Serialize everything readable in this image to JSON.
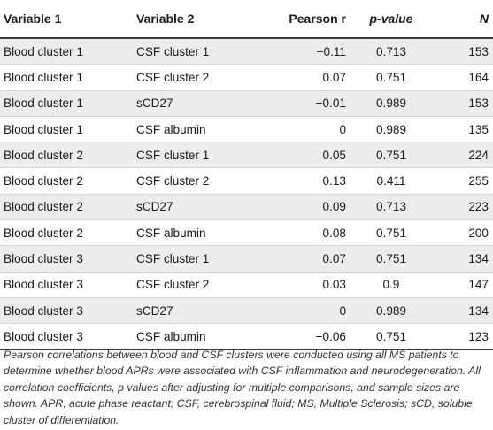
{
  "table": {
    "headers": {
      "var1": "Variable 1",
      "var2": "Variable 2",
      "pearson": "Pearson r",
      "pvalue": "p-value",
      "n": "N"
    },
    "rows": [
      {
        "var1": "Blood cluster 1",
        "var2": "CSF cluster 1",
        "r": "−0.11",
        "p": "0.713",
        "n": "153"
      },
      {
        "var1": "Blood cluster 1",
        "var2": "CSF cluster 2",
        "r": "0.07",
        "p": "0.751",
        "n": "164"
      },
      {
        "var1": "Blood cluster 1",
        "var2": "sCD27",
        "r": "−0.01",
        "p": "0.989",
        "n": "153"
      },
      {
        "var1": "Blood cluster 1",
        "var2": "CSF albumin",
        "r": "0",
        "p": "0.989",
        "n": "135"
      },
      {
        "var1": "Blood cluster 2",
        "var2": "CSF cluster 1",
        "r": "0.05",
        "p": "0.751",
        "n": "224"
      },
      {
        "var1": "Blood cluster 2",
        "var2": "CSF cluster 2",
        "r": "0.13",
        "p": "0.411",
        "n": "255"
      },
      {
        "var1": "Blood cluster 2",
        "var2": "sCD27",
        "r": "0.09",
        "p": "0.713",
        "n": "223"
      },
      {
        "var1": "Blood cluster 2",
        "var2": "CSF albumin",
        "r": "0.08",
        "p": "0.751",
        "n": "200"
      },
      {
        "var1": "Blood cluster 3",
        "var2": "CSF cluster 1",
        "r": "0.07",
        "p": "0.751",
        "n": "134"
      },
      {
        "var1": "Blood cluster 3",
        "var2": "CSF cluster 2",
        "r": "0.03",
        "p": "0.9",
        "n": "147"
      },
      {
        "var1": "Blood cluster 3",
        "var2": "sCD27",
        "r": "0",
        "p": "0.989",
        "n": "134"
      },
      {
        "var1": "Blood cluster 3",
        "var2": "CSF albumin",
        "r": "−0.06",
        "p": "0.751",
        "n": "123"
      }
    ]
  },
  "footnote": "Pearson correlations between blood and CSF clusters were conducted using all MS patients to determine whether blood APRs were associated with CSF inflammation and neurodegeneration. All correlation coefficients, p values after adjusting for multiple comparisons, and sample sizes are shown. APR, acute phase reactant; CSF, cerebrospinal fluid; MS, Multiple Sclerosis; sCD, soluble cluster of differentiation.",
  "colors": {
    "stripe": "#ececec",
    "rule": "#3a3a3a"
  }
}
